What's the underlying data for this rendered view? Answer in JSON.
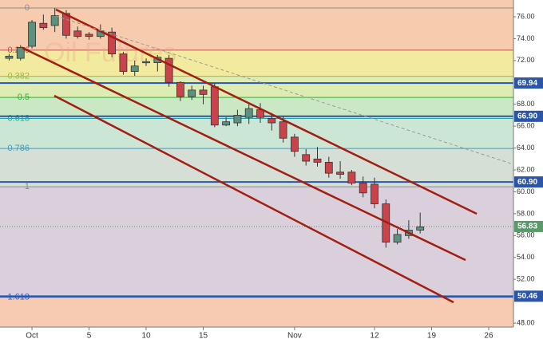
{
  "chart_data": {
    "type": "candlestick",
    "watermark": "Oil Futures",
    "xlim": [
      -2.8,
      42.17
    ],
    "xticks": [
      {
        "value": 0,
        "label": "Oct"
      },
      5,
      10,
      15,
      {
        "value": 23,
        "label": "Nov"
      },
      {
        "value": 30,
        "label": "12"
      },
      {
        "value": 35,
        "label": "19"
      },
      {
        "value": 40,
        "label": "26"
      }
    ],
    "ylim": [
      47.64,
      77.53
    ],
    "yticks": [
      {
        "value": 48,
        "label": "48.00"
      },
      {
        "value": 52,
        "label": "52.00"
      },
      {
        "value": 54,
        "label": "54.00"
      },
      {
        "value": 56,
        "label": "56.00"
      },
      {
        "value": 58,
        "label": "58.00"
      },
      {
        "value": 60,
        "label": "60.00"
      },
      {
        "value": 62,
        "label": "62.00"
      },
      {
        "value": 64,
        "label": "64.00"
      },
      {
        "value": 66,
        "label": "66.00"
      },
      {
        "value": 68,
        "label": "68.00"
      },
      {
        "value": 72,
        "label": "72.00"
      },
      {
        "value": 74,
        "label": "74.00"
      },
      {
        "value": 76,
        "label": "76.00"
      }
    ],
    "fibonacci": {
      "high": 76.8,
      "low": 60.46,
      "levels": [
        {
          "ratio": 0,
          "color": "#8a8a8a",
          "fill": "#f7ccae"
        },
        {
          "ratio": 0.236,
          "color": "#c0504d",
          "fill": "#f2ea9e"
        },
        {
          "ratio": 0.382,
          "color": "#9bbb3a",
          "fill": "#dcecb2"
        },
        {
          "ratio": 0.5,
          "color": "#3daa3d",
          "fill": "#cbe8c4"
        },
        {
          "ratio": 0.618,
          "color": "#2aa198",
          "fill": "#cce6d6"
        },
        {
          "ratio": 0.786,
          "color": "#4a9ab5",
          "fill": "#d6dfd6"
        },
        {
          "ratio": 1,
          "color": "#8a8a8a",
          "fill": "#d9d0dc"
        },
        {
          "ratio": 1.618,
          "color": "#2f5dbb",
          "fill": "#f6cbb2"
        }
      ]
    },
    "levels": [
      {
        "value": 69.94,
        "color": "#2a55a8",
        "style": "solid"
      },
      {
        "value": 66.9,
        "label": "66.90",
        "color": "#2a55a8",
        "style": "solid"
      },
      {
        "value": 60.9,
        "label": "60.90",
        "color": "#2a55a8",
        "style": "solid"
      },
      {
        "value": 56.83,
        "color": "#5a9a6a",
        "style": "dotted"
      },
      {
        "value": 50.46,
        "color": "#2a55a8",
        "style": "solid"
      }
    ],
    "up_color": "#5c9180",
    "down_color": "#c9434a",
    "x": [
      -2,
      -1,
      0,
      1,
      2,
      3,
      4,
      5,
      6,
      7,
      8,
      9,
      10,
      11,
      12,
      13,
      14,
      15,
      16,
      17,
      18,
      19,
      20,
      21,
      22,
      23,
      24,
      25,
      26,
      27,
      28,
      29,
      30,
      31,
      32,
      33,
      34
    ],
    "open": [
      72.2,
      72.2,
      73.3,
      75.4,
      75.2,
      76.3,
      74.7,
      74.4,
      74.2,
      74.6,
      72.6,
      71.0,
      71.8,
      71.8,
      72.2,
      70.0,
      68.7,
      69.3,
      69.6,
      66.1,
      66.3,
      66.8,
      67.5,
      66.7,
      66.4,
      65.0,
      63.4,
      63.0,
      62.7,
      61.8,
      61.8,
      60.8,
      60.7,
      58.9,
      55.4,
      56.0,
      56.5
    ],
    "high": [
      72.6,
      73.4,
      75.7,
      76.2,
      76.8,
      76.6,
      75.1,
      74.6,
      75.3,
      75.0,
      72.8,
      72.0,
      72.2,
      72.5,
      72.5,
      70.1,
      69.7,
      69.7,
      69.9,
      66.8,
      67.5,
      68.0,
      68.1,
      67.2,
      66.9,
      65.3,
      63.9,
      64.1,
      63.2,
      62.8,
      62.0,
      61.4,
      61.3,
      59.3,
      56.6,
      57.4,
      58.1
    ],
    "low": [
      72.0,
      72.0,
      73.1,
      74.8,
      74.6,
      74.0,
      74.0,
      73.9,
      74.0,
      72.3,
      70.7,
      70.6,
      71.5,
      71.0,
      69.6,
      68.3,
      68.4,
      68.0,
      65.9,
      66.0,
      66.0,
      66.2,
      66.3,
      65.6,
      64.5,
      63.2,
      62.4,
      62.3,
      61.3,
      61.2,
      60.6,
      59.5,
      58.5,
      54.9,
      55.2,
      55.7,
      56.2
    ],
    "close": [
      72.4,
      73.2,
      75.5,
      75.0,
      76.1,
      74.3,
      74.2,
      74.2,
      74.7,
      72.6,
      71.0,
      71.5,
      71.9,
      72.3,
      70.0,
      68.7,
      69.3,
      68.9,
      66.1,
      66.4,
      67.0,
      67.6,
      66.8,
      66.3,
      64.9,
      63.7,
      62.8,
      62.7,
      61.7,
      61.6,
      60.8,
      59.9,
      58.9,
      55.4,
      56.1,
      56.5,
      56.8
    ]
  }
}
